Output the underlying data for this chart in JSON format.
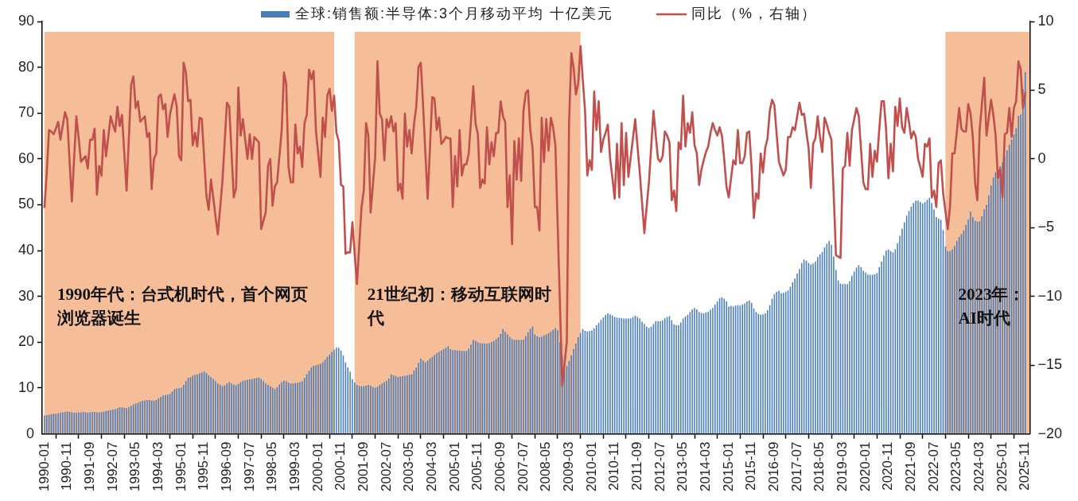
{
  "chart_data": {
    "type": "bar",
    "legend": "top",
    "x": [
      "1990-01",
      "1990-02",
      "1990-03",
      "1990-04",
      "1990-05",
      "1990-06",
      "1990-07",
      "1990-08",
      "1990-09",
      "1990-10",
      "1990-11",
      "1990-12",
      "1991-01",
      "1991-02",
      "1991-03",
      "1991-04",
      "1991-05",
      "1991-06",
      "1991-07",
      "1991-08",
      "1991-09",
      "1991-10",
      "1991-11",
      "1991-12",
      "1992-01",
      "1992-02",
      "1992-03",
      "1992-04",
      "1992-05",
      "1992-06",
      "1992-07",
      "1992-08",
      "1992-09",
      "1992-10",
      "1992-11",
      "1992-12",
      "1993-01",
      "1993-02",
      "1993-03",
      "1993-04",
      "1993-05",
      "1993-06",
      "1993-07",
      "1993-08",
      "1993-09",
      "1993-10",
      "1993-11",
      "1993-12",
      "1994-01",
      "1994-02",
      "1994-03",
      "1994-04",
      "1994-05",
      "1994-06",
      "1994-07",
      "1994-08",
      "1994-09",
      "1994-10",
      "1994-11",
      "1994-12",
      "1995-01",
      "1995-02",
      "1995-03",
      "1995-04",
      "1995-05",
      "1995-06",
      "1995-07",
      "1995-08",
      "1995-09",
      "1995-10",
      "1995-11",
      "1995-12",
      "1996-01",
      "1996-02",
      "1996-03",
      "1996-04",
      "1996-05",
      "1996-06",
      "1996-07",
      "1996-08",
      "1996-09",
      "1996-10",
      "1996-11",
      "1996-12",
      "1997-01",
      "1997-02",
      "1997-03",
      "1997-04",
      "1997-05",
      "1997-06",
      "1997-07",
      "1997-08",
      "1997-09",
      "1997-10",
      "1997-11",
      "1997-12",
      "1998-01",
      "1998-02",
      "1998-03",
      "1998-04",
      "1998-05",
      "1998-06",
      "1998-07",
      "1998-08",
      "1998-09",
      "1998-10",
      "1998-11",
      "1998-12",
      "1999-01",
      "1999-02",
      "1999-03",
      "1999-04",
      "1999-05",
      "1999-06",
      "1999-07",
      "1999-08",
      "1999-09",
      "1999-10",
      "1999-11",
      "1999-12",
      "2000-01",
      "2000-02",
      "2000-03",
      "2000-04",
      "2000-05",
      "2000-06",
      "2000-07",
      "2000-08",
      "2000-09",
      "2000-10",
      "2000-11",
      "2000-12",
      "2001-01",
      "2001-02",
      "2001-03",
      "2001-04",
      "2001-05",
      "2001-06",
      "2001-07",
      "2001-08",
      "2001-09",
      "2001-10",
      "2001-11",
      "2001-12",
      "2002-01",
      "2002-02",
      "2002-03",
      "2002-04",
      "2002-05",
      "2002-06",
      "2002-07",
      "2002-08",
      "2002-09",
      "2002-10",
      "2002-11",
      "2002-12",
      "2003-01",
      "2003-02",
      "2003-03",
      "2003-04",
      "2003-05",
      "2003-06",
      "2003-07",
      "2003-08",
      "2003-09",
      "2003-10",
      "2003-11",
      "2003-12",
      "2004-01",
      "2004-02",
      "2004-03",
      "2004-04",
      "2004-05",
      "2004-06",
      "2004-07",
      "2004-08",
      "2004-09",
      "2004-10",
      "2004-11",
      "2004-12",
      "2005-01",
      "2005-02",
      "2005-03",
      "2005-04",
      "2005-05",
      "2005-06",
      "2005-07",
      "2005-08",
      "2005-09",
      "2005-10",
      "2005-11",
      "2005-12",
      "2006-01",
      "2006-02",
      "2006-03",
      "2006-04",
      "2006-05",
      "2006-06",
      "2006-07",
      "2006-08",
      "2006-09",
      "2006-10",
      "2006-11",
      "2006-12",
      "2007-01",
      "2007-02",
      "2007-03",
      "2007-04",
      "2007-05",
      "2007-06",
      "2007-07",
      "2007-08",
      "2007-09",
      "2007-10",
      "2007-11",
      "2007-12",
      "2008-01",
      "2008-02",
      "2008-03",
      "2008-04",
      "2008-05",
      "2008-06",
      "2008-07",
      "2008-08",
      "2008-09",
      "2008-10",
      "2008-11",
      "2008-12",
      "2009-01",
      "2009-02",
      "2009-03",
      "2009-04",
      "2009-05",
      "2009-06",
      "2009-07",
      "2009-08",
      "2009-09",
      "2009-10",
      "2009-11",
      "2009-12",
      "2010-01",
      "2010-02",
      "2010-03",
      "2010-04",
      "2010-05",
      "2010-06",
      "2010-07",
      "2010-08",
      "2010-09",
      "2010-10",
      "2010-11",
      "2010-12",
      "2011-01",
      "2011-02",
      "2011-03",
      "2011-04",
      "2011-05",
      "2011-06",
      "2011-07",
      "2011-08",
      "2011-09",
      "2011-10",
      "2011-11",
      "2011-12",
      "2012-01",
      "2012-02",
      "2012-03",
      "2012-04",
      "2012-05",
      "2012-06",
      "2012-07",
      "2012-08",
      "2012-09",
      "2012-10",
      "2012-11",
      "2012-12",
      "2013-01",
      "2013-02",
      "2013-03",
      "2013-04",
      "2013-05",
      "2013-06",
      "2013-07",
      "2013-08",
      "2013-09",
      "2013-10",
      "2013-11",
      "2013-12",
      "2014-01",
      "2014-02",
      "2014-03",
      "2014-04",
      "2014-05",
      "2014-06",
      "2014-07",
      "2014-08",
      "2014-09",
      "2014-10",
      "2014-11",
      "2014-12",
      "2015-01",
      "2015-02",
      "2015-03",
      "2015-04",
      "2015-05",
      "2015-06",
      "2015-07",
      "2015-08",
      "2015-09",
      "2015-10",
      "2015-11",
      "2015-12",
      "2016-01",
      "2016-02",
      "2016-03",
      "2016-04",
      "2016-05",
      "2016-06",
      "2016-07",
      "2016-08",
      "2016-09",
      "2016-10",
      "2016-11",
      "2016-12",
      "2017-01",
      "2017-02",
      "2017-03",
      "2017-04",
      "2017-05",
      "2017-06",
      "2017-07",
      "2017-08",
      "2017-09",
      "2017-10",
      "2017-11",
      "2017-12",
      "2018-01",
      "2018-02",
      "2018-03",
      "2018-04",
      "2018-05",
      "2018-06",
      "2018-07",
      "2018-08",
      "2018-09",
      "2018-10",
      "2018-11",
      "2018-12",
      "2019-01",
      "2019-02",
      "2019-03",
      "2019-04",
      "2019-05",
      "2019-06",
      "2019-07",
      "2019-08",
      "2019-09",
      "2019-10",
      "2019-11",
      "2019-12",
      "2020-01",
      "2020-02",
      "2020-03",
      "2020-04",
      "2020-05",
      "2020-06",
      "2020-07",
      "2020-08",
      "2020-09",
      "2020-10",
      "2020-11",
      "2020-12",
      "2021-01",
      "2021-02",
      "2021-03",
      "2021-04",
      "2021-05",
      "2021-06",
      "2021-07",
      "2021-08",
      "2021-09",
      "2021-10",
      "2021-11",
      "2021-12",
      "2022-01",
      "2022-02",
      "2022-03",
      "2022-04",
      "2022-05",
      "2022-06",
      "2022-07",
      "2022-08",
      "2022-09",
      "2022-10",
      "2022-11",
      "2022-12",
      "2023-01",
      "2023-02",
      "2023-03",
      "2023-04",
      "2023-05",
      "2023-06",
      "2023-07",
      "2023-08",
      "2023-09",
      "2023-10",
      "2023-11",
      "2023-12",
      "2024-01",
      "2024-02",
      "2024-03",
      "2024-04",
      "2024-05",
      "2024-06",
      "2024-07",
      "2024-08",
      "2024-09",
      "2024-10",
      "2024-11",
      "2024-12",
      "2025-01",
      "2025-02",
      "2025-03",
      "2025-04",
      "2025-05",
      "2025-06",
      "2025-07",
      "2025-08",
      "2025-09",
      "2025-10",
      "2025-11"
    ],
    "xlim": [
      "1989-12",
      "2026-01"
    ],
    "xticks": [
      "1990-01",
      "1990-11",
      "1991-09",
      "1992-07",
      "1993-05",
      "1994-03",
      "1995-01",
      "1995-11",
      "1996-09",
      "1997-07",
      "1998-05",
      "1999-03",
      "2000-01",
      "2000-11",
      "2001-09",
      "2002-07",
      "2003-05",
      "2004-03",
      "2005-01",
      "2005-11",
      "2006-09",
      "2007-07",
      "2008-05",
      "2009-03",
      "2010-01",
      "2010-11",
      "2011-09",
      "2012-07",
      "2013-05",
      "2014-03",
      "2015-01",
      "2015-11",
      "2016-09",
      "2017-07",
      "2018-05",
      "2019-03",
      "2020-01",
      "2020-11",
      "2021-09",
      "2022-07",
      "2023-05",
      "2024-03",
      "2025-01",
      "2025-11"
    ],
    "ylim": [
      0,
      90
    ],
    "yticks": [
      0,
      10,
      20,
      30,
      40,
      50,
      60,
      70,
      80,
      90
    ],
    "y2lim": [
      -20,
      10
    ],
    "y2ticks": [
      -20,
      -15,
      -10,
      -5,
      0,
      5,
      10
    ],
    "series": [
      {
        "name": "全球:销售额:半导体:3个月移动平均 十亿美元",
        "color": "#4a7ebb",
        "values": [
          4.0,
          4.1,
          4.2,
          4.3,
          4.4,
          4.4,
          4.5,
          4.6,
          4.7,
          4.8,
          4.9,
          4.8,
          4.7,
          4.6,
          4.6,
          4.7,
          4.7,
          4.8,
          4.7,
          4.6,
          4.7,
          4.8,
          4.8,
          4.7,
          4.7,
          4.8,
          4.9,
          5.0,
          5.1,
          5.2,
          5.3,
          5.4,
          5.6,
          5.8,
          5.8,
          5.7,
          5.6,
          5.8,
          6.1,
          6.4,
          6.6,
          6.8,
          7.0,
          7.2,
          7.3,
          7.4,
          7.4,
          7.3,
          7.2,
          7.4,
          7.8,
          8.1,
          8.4,
          8.5,
          8.6,
          8.7,
          9.2,
          9.8,
          9.9,
          10.0,
          10.1,
          10.7,
          11.5,
          12.2,
          12.4,
          12.7,
          12.9,
          13.0,
          13.2,
          13.4,
          13.6,
          13.3,
          12.8,
          12.4,
          12.0,
          11.5,
          11.0,
          10.7,
          10.4,
          10.6,
          11.0,
          11.3,
          11.0,
          10.8,
          10.6,
          10.9,
          11.3,
          11.6,
          11.7,
          11.8,
          11.9,
          12.0,
          12.1,
          12.2,
          12.3,
          12.0,
          11.5,
          11.0,
          10.7,
          10.4,
          10.1,
          9.8,
          10.2,
          10.8,
          11.3,
          11.6,
          11.5,
          11.2,
          11.0,
          11.0,
          11.1,
          11.2,
          11.3,
          11.5,
          12.2,
          13.0,
          13.8,
          14.5,
          14.8,
          15.0,
          15.1,
          15.3,
          15.6,
          16.2,
          16.8,
          17.3,
          17.9,
          18.4,
          18.8,
          18.8,
          18.2,
          17.1,
          15.6,
          14.5,
          13.6,
          11.9,
          11.2,
          10.7,
          10.5,
          10.4,
          10.4,
          10.5,
          10.7,
          10.5,
          10.2,
          10.1,
          10.3,
          10.7,
          11.0,
          11.3,
          11.6,
          12.1,
          13.0,
          12.8,
          12.6,
          12.4,
          12.5,
          12.6,
          12.7,
          12.8,
          12.9,
          13.0,
          13.8,
          14.5,
          15.5,
          16.4,
          16.0,
          15.6,
          16.0,
          16.5,
          16.8,
          17.2,
          17.6,
          17.9,
          18.2,
          18.5,
          18.8,
          19.1,
          18.5,
          18.3,
          18.3,
          18.2,
          18.2,
          18.1,
          18.1,
          18.1,
          18.6,
          19.5,
          20.5,
          20.3,
          20.0,
          19.8,
          19.7,
          19.7,
          19.7,
          19.8,
          20.0,
          20.3,
          20.7,
          21.1,
          21.8,
          22.9,
          22.3,
          21.7,
          21.2,
          20.7,
          20.5,
          20.5,
          20.5,
          20.5,
          20.6,
          21.3,
          22.2,
          22.9,
          23.4,
          21.7,
          21.3,
          21.1,
          21.2,
          21.5,
          21.7,
          22.0,
          22.3,
          22.7,
          23.1,
          22.6,
          20.0,
          17.1,
          14.2,
          14.8,
          15.9,
          17.1,
          18.5,
          19.7,
          21.1,
          22.0,
          22.9,
          22.5,
          22.3,
          22.4,
          22.6,
          23.0,
          23.7,
          24.2,
          24.9,
          25.4,
          25.9,
          26.3,
          26.1,
          25.8,
          25.5,
          25.4,
          25.3,
          25.3,
          25.2,
          25.2,
          25.2,
          25.2,
          25.5,
          25.8,
          25.5,
          25.2,
          24.5,
          24.0,
          23.4,
          23.1,
          23.4,
          24.0,
          24.6,
          24.6,
          24.6,
          24.8,
          25.2,
          25.5,
          25.7,
          24.8,
          23.9,
          23.7,
          23.7,
          24.3,
          25.2,
          25.6,
          26.0,
          26.6,
          27.2,
          27.5,
          27.2,
          26.6,
          26.4,
          26.3,
          26.5,
          26.6,
          27.1,
          27.5,
          28.2,
          28.9,
          29.6,
          29.8,
          29.5,
          28.9,
          27.8,
          27.9,
          27.8,
          28.0,
          28.1,
          28.0,
          28.2,
          28.5,
          28.9,
          29.1,
          28.6,
          27.4,
          26.6,
          26.2,
          26.0,
          26.1,
          26.3,
          27.0,
          28.1,
          29.5,
          30.5,
          31.0,
          31.2,
          30.7,
          30.8,
          31.0,
          31.3,
          32.1,
          33.1,
          33.9,
          35.0,
          36.0,
          37.3,
          38.0,
          37.8,
          37.3,
          37.0,
          37.2,
          37.6,
          38.6,
          39.2,
          39.7,
          40.7,
          41.5,
          42.1,
          41.3,
          38.7,
          35.8,
          33.5,
          32.8,
          32.7,
          32.7,
          32.7,
          33.3,
          34.5,
          35.4,
          36.3,
          36.8,
          36.4,
          35.6,
          35.2,
          34.8,
          34.7,
          34.7,
          34.8,
          35.1,
          36.4,
          37.6,
          38.9,
          40.0,
          40.2,
          39.9,
          39.6,
          40.3,
          41.6,
          43.2,
          44.8,
          46.2,
          47.6,
          48.6,
          49.6,
          50.4,
          50.9,
          50.9,
          50.6,
          50.3,
          50.6,
          51.1,
          51.5,
          50.4,
          49.0,
          47.3,
          47.0,
          46.7,
          44.5,
          40.9,
          39.9,
          39.9,
          40.3,
          41.0,
          42.1,
          43.0,
          43.6,
          44.4,
          45.6,
          46.8,
          48.5,
          47.3,
          46.5,
          46.3,
          46.4,
          47.5,
          49.0,
          50.0,
          52.1,
          54.2,
          56.0,
          57.1,
          57.9,
          58.4,
          59.2,
          60.6,
          61.9,
          63.1,
          64.2,
          65.4,
          66.7,
          69.4,
          69.7,
          75.2,
          79.0
        ]
      },
      {
        "name": "同比（%，右轴）",
        "type": "line",
        "axis": "y2",
        "color": "#c0504d",
        "values": [
          -3.5,
          -1.0,
          2.1,
          2.0,
          1.8,
          2.2,
          2.7,
          1.4,
          2.4,
          3.4,
          2.9,
          -0.1,
          -3.1,
          0.0,
          3.1,
          1.5,
          -0.2,
          0.0,
          0.2,
          -0.7,
          1.4,
          1.4,
          2.2,
          -2.6,
          -0.5,
          -1.2,
          2.1,
          0.2,
          1.6,
          3.1,
          2.5,
          2.0,
          3.8,
          2.4,
          3.2,
          0.4,
          -2.3,
          1.5,
          5.4,
          6.0,
          3.7,
          4.2,
          2.7,
          2.9,
          3.1,
          1.6,
          1.9,
          -2.2,
          0.0,
          0.4,
          4.5,
          4.7,
          3.6,
          4.0,
          1.6,
          3.2,
          4.0,
          4.7,
          3.8,
          0.2,
          -0.1,
          7.0,
          6.3,
          4.2,
          4.3,
          1.0,
          1.9,
          0.9,
          3.0,
          2.9,
          0.1,
          -2.7,
          -3.7,
          -1.5,
          -2.8,
          -4.2,
          -5.5,
          -3.6,
          -1.7,
          1.2,
          4.1,
          3.8,
          0.5,
          -2.8,
          -2.1,
          5.2,
          1.7,
          2.9,
          1.4,
          0.0,
          1.8,
          0.0,
          1.6,
          1.4,
          1.2,
          -5.1,
          -4.5,
          -3.9,
          -0.5,
          0.0,
          -3.4,
          -2.0,
          -1.7,
          0.2,
          2.1,
          6.3,
          5.4,
          -0.6,
          -1.7,
          -1.7,
          2.5,
          0.4,
          0.9,
          -0.6,
          2.6,
          3.2,
          6.5,
          5.8,
          6.4,
          2.1,
          0.4,
          -1.3,
          3.0,
          1.6,
          4.6,
          5.1,
          3.5,
          4.6,
          1.9,
          1.3,
          -1.9,
          -2.0,
          -6.9,
          -6.8,
          -6.8,
          -4.6,
          -6.9,
          -9.1,
          -6.3,
          -3.5,
          -2.3,
          2.6,
          1.7,
          -3.9,
          -1.9,
          0.2,
          7.1,
          3.3,
          2.9,
          -0.1,
          2.9,
          2.3,
          3.1,
          2.0,
          2.6,
          -2.3,
          -1.8,
          -2.9,
          3.3,
          0.9,
          2.1,
          0.4,
          2.5,
          3.8,
          6.7,
          7.0,
          3.9,
          0.4,
          -2.9,
          0.8,
          4.5,
          4.4,
          2.1,
          3.0,
          1.1,
          1.3,
          1.6,
          1.5,
          1.5,
          -3.5,
          0.2,
          -2.0,
          2.1,
          -1.2,
          -0.4,
          -0.4,
          0.4,
          2.8,
          5.3,
          2.6,
          1.8,
          -2.1,
          -1.5,
          -1.8,
          2.3,
          -0.4,
          1.2,
          0.2,
          1.9,
          1.9,
          4.2,
          3.1,
          2.7,
          -3.5,
          -1.2,
          -6.2,
          1.3,
          -1.5,
          1.5,
          -1.6,
          3.5,
          4.8,
          5.0,
          2.1,
          0.8,
          -3.5,
          -3.5,
          -5.2,
          3.0,
          -0.2,
          2.9,
          0.6,
          3.0,
          2.3,
          1.0,
          -4.8,
          -10.6,
          -16.5,
          -14.9,
          -13.3,
          2.7,
          7.7,
          6.6,
          4.7,
          5.5,
          8.2,
          5.8,
          3.5,
          -1.2,
          -0.1,
          -0.8,
          4.9,
          2.1,
          4.2,
          0.5,
          1.4,
          1.9,
          2.5,
          0.0,
          -1.4,
          -2.9,
          1.1,
          -2.8,
          2.6,
          -1.9,
          1.9,
          -1.3,
          0.1,
          1.5,
          2.9,
          0.9,
          -1.0,
          -3.2,
          -5.4,
          -3.5,
          -1.7,
          0.9,
          3.5,
          1.7,
          0.0,
          -0.2,
          0.2,
          2.0,
          1.7,
          1.2,
          -3.0,
          -2.3,
          -3.8,
          1.2,
          0.7,
          4.6,
          0.9,
          2.6,
          1.9,
          3.4,
          1.0,
          0.4,
          -1.9,
          -0.8,
          -0.1,
          0.5,
          0.9,
          1.9,
          2.6,
          2.1,
          1.7,
          2.3,
          1.7,
          0.0,
          -2.0,
          -2.8,
          -1.4,
          -0.1,
          -0.4,
          2.1,
          -0.3,
          -0.3,
          0.2,
          1.9,
          2.0,
          -0.6,
          -4.3,
          -2.5,
          -2.9,
          0.4,
          -1.0,
          0.8,
          1.5,
          3.5,
          4.3,
          3.9,
          1.8,
          -0.2,
          -0.7,
          -1.2,
          -0.8,
          1.6,
          1.6,
          2.3,
          2.1,
          3.1,
          4.1,
          3.2,
          3.3,
          2.0,
          0.8,
          -2.1,
          1.1,
          1.5,
          3.1,
          1.6,
          0.5,
          3.0,
          2.5,
          1.9,
          1.4,
          -2.5,
          -7.0,
          -7.1,
          -7.2,
          -0.7,
          -0.5,
          1.9,
          -0.5,
          2.1,
          2.9,
          3.7,
          3.1,
          0.7,
          -1.7,
          -2.2,
          -2.2,
          1.1,
          -1.3,
          0.6,
          -0.2,
          2.2,
          4.2,
          4.2,
          2.1,
          -1.4,
          1.1,
          -0.9,
          3.8,
          2.4,
          4.4,
          2.3,
          1.9,
          3.7,
          2.7,
          1.5,
          2.0,
          1.6,
          0.0,
          -0.6,
          -1.3,
          1.1,
          0.9,
          1.5,
          -2.8,
          -2.3,
          -3.5,
          -0.3,
          -0.1,
          -2.5,
          -3.8,
          -5.1,
          -3.5,
          0.4,
          0.4,
          2.0,
          3.7,
          2.2,
          2.0,
          2.0,
          4.0,
          3.3,
          1.6,
          -1.7,
          -3.0,
          2.1,
          4.0,
          5.9,
          1.7,
          3.0,
          4.3,
          3.2,
          1.7,
          -1.4,
          -0.7,
          -2.8,
          1.8,
          1.9,
          3.7,
          1.6,
          3.7,
          4.2,
          7.1,
          6.5,
          3.7,
          4.8
        ]
      }
    ],
    "bands": [
      {
        "axis": "x",
        "from": "1990-01",
        "to": "2000-08",
        "label": "1990年代：台式机时代，首个网页浏览器诞生",
        "color": "#ed7d31"
      },
      {
        "axis": "x",
        "from": "2001-05",
        "to": "2009-08",
        "label": "21世纪初：移动互联网时代",
        "color": "#ed7d31"
      },
      {
        "axis": "x",
        "from": "2022-12",
        "to": "2026-01",
        "label": "2023年：AI时代",
        "color": "#ed7d31"
      }
    ]
  }
}
